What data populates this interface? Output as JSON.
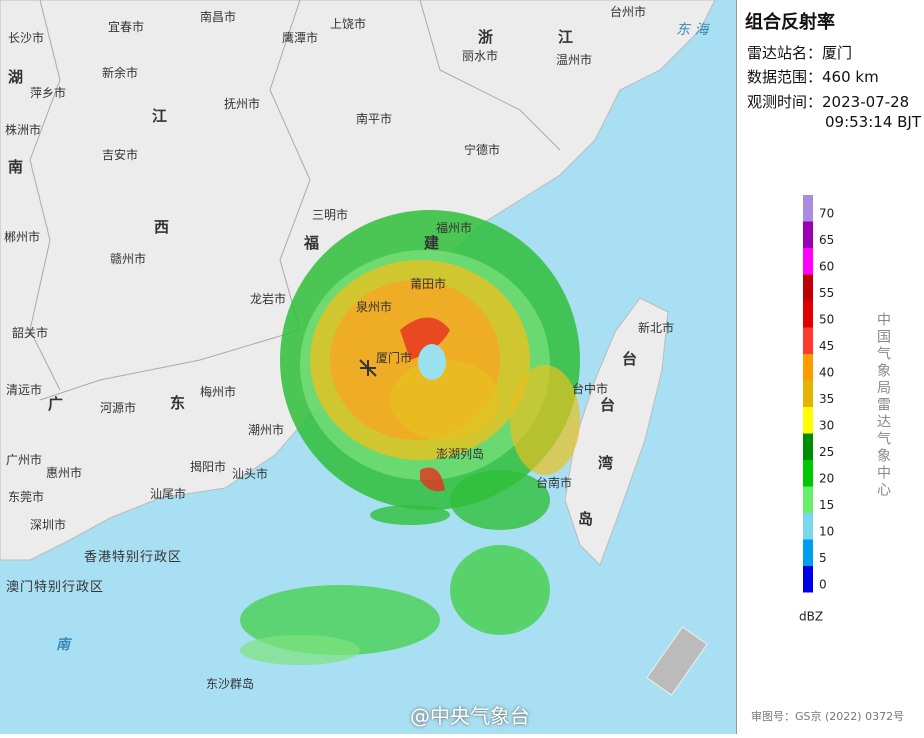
{
  "panel": {
    "title": "组合反射率",
    "station_label": "雷达站名：",
    "station": "厦门",
    "range_label": "数据范围：",
    "range": "460 km",
    "time_label": "观测时间：",
    "date": "2023-07-28",
    "time": "09:53:14 BJT",
    "scale": {
      "labels": [
        70,
        65,
        60,
        55,
        50,
        45,
        40,
        35,
        30,
        25,
        20,
        15,
        10,
        5,
        0
      ],
      "colors": [
        "#a98ce0",
        "#9a00b4",
        "#ff00ff",
        "#c00000",
        "#e00000",
        "#ff3b30",
        "#ff9a00",
        "#e6b400",
        "#ffff00",
        "#008c00",
        "#00c800",
        "#66ee66",
        "#7ad8ee",
        "#009cf0",
        "#0000e8"
      ],
      "unit": "dBZ"
    },
    "producer": "中国气象局雷达气象中心",
    "approval": "审图号：GS京 (2022) 0372号"
  },
  "watermark": "@中央气象台",
  "map": {
    "labels": [
      "长沙市",
      "宜春市",
      "南昌市",
      "上饶市",
      "鹰潭市",
      "台州市",
      "东 海",
      "湖",
      "萍乡市",
      "新余市",
      "浙",
      "江",
      "丽水市",
      "温州市",
      "株洲市",
      "江",
      "抚州市",
      "南平市",
      "宁德市",
      "南",
      "吉安市",
      "西",
      "三明市",
      "郴州市",
      "赣州市",
      "福",
      "建",
      "福州市",
      "龙岩市",
      "莆田市",
      "泉州市",
      "韶关市",
      "厦门市",
      "新北市",
      "台",
      "清远市",
      "广",
      "河源市",
      "东",
      "梅州市",
      "台中市",
      "台",
      "湾",
      "潮州市",
      "广州市",
      "惠州市",
      "揭阳市",
      "汕头市",
      "澎湖列岛",
      "台南市",
      "东莞市",
      "汕尾市",
      "深圳市",
      "岛",
      "香港特别行政区",
      "澳门特别行政区",
      "南",
      "东沙群岛"
    ]
  }
}
